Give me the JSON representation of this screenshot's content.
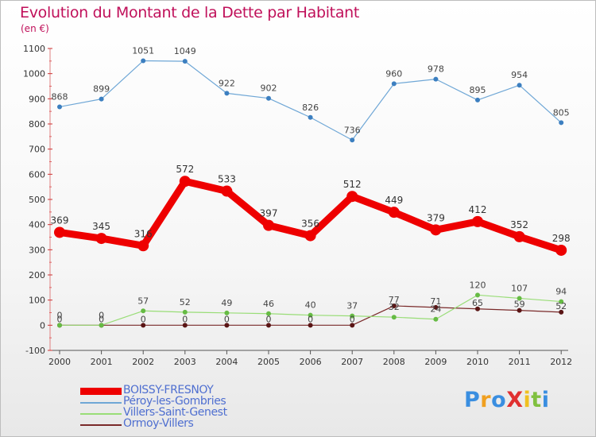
{
  "chart_data": {
    "type": "line",
    "title": "Evolution du Montant de la Dette par Habitant",
    "subtitle": "(en €)",
    "x": [
      "2000",
      "2001",
      "2002",
      "2003",
      "2004",
      "2005",
      "2006",
      "2007",
      "2008",
      "2009",
      "2010",
      "2011",
      "2012"
    ],
    "ylim": [
      -100,
      1100
    ],
    "yticks": [
      -100,
      0,
      100,
      200,
      300,
      400,
      500,
      600,
      700,
      800,
      900,
      1000,
      1100
    ],
    "grid": false,
    "legend_position": "bottom-left",
    "series": [
      {
        "name": "BOISSY-FRESNOY",
        "color": "#ee0000",
        "width": 9,
        "marker": 7,
        "values": [
          369,
          345,
          316,
          572,
          533,
          397,
          356,
          512,
          449,
          379,
          412,
          352,
          298
        ],
        "labels": [
          "369",
          "345",
          "316",
          "572",
          "533",
          "397",
          "356",
          "512",
          "449",
          "379",
          "412",
          "352",
          "298"
        ]
      },
      {
        "name": "Péroy-les-Gombries",
        "color": "#6fa7d6",
        "marker_color": "#3c7fc0",
        "width": 1.2,
        "marker": 3,
        "values": [
          868,
          899,
          1051,
          1049,
          922,
          902,
          826,
          736,
          960,
          978,
          895,
          954,
          805
        ],
        "labels": [
          "868",
          "899",
          "1051",
          "1049",
          "922",
          "902",
          "826",
          "736",
          "960",
          "978",
          "895",
          "954",
          "805"
        ]
      },
      {
        "name": "Villers-Saint-Genest",
        "color": "#99dd77",
        "marker_color": "#66bb44",
        "width": 1.2,
        "marker": 3,
        "values": [
          0,
          0,
          57,
          52,
          49,
          46,
          40,
          37,
          32,
          24,
          120,
          107,
          94
        ],
        "labels": [
          "0",
          "0",
          "57",
          "52",
          "49",
          "46",
          "40",
          "37",
          "32",
          "24",
          "120",
          "107",
          "94"
        ]
      },
      {
        "name": "Ormoy-Villers",
        "color": "#7a2a2a",
        "marker_color": "#5a1515",
        "width": 1.2,
        "marker": 3,
        "values": [
          0,
          0,
          0,
          0,
          0,
          0,
          0,
          0,
          77,
          71,
          65,
          59,
          52
        ],
        "labels": [
          "0",
          "0",
          "0",
          "0",
          "0",
          "0",
          "0",
          "0",
          "77",
          "71",
          "65",
          "59",
          "52"
        ]
      }
    ]
  },
  "logo": {
    "text": "ProXiti",
    "colors": [
      "#3a8ee0",
      "#f0a020",
      "#3a8ee0",
      "#e03030",
      "#f0c020",
      "#80c040",
      "#3a8ee0"
    ]
  }
}
